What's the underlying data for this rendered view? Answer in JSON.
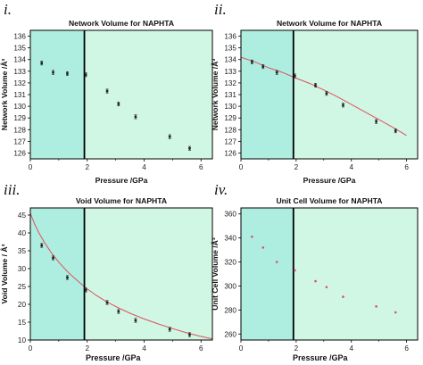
{
  "figure": {
    "colors": {
      "region_low": "#aeeee0",
      "region_high": "#cff7e3",
      "boundary_line": "#000000",
      "marker": "#222222",
      "fit_line": "#e05060"
    },
    "x_axis_label": "Pressure /GPa"
  },
  "chart_data": [
    {
      "type": "scatter",
      "panel_label": "i.",
      "title": "Network Volume for NAPHTA",
      "xlabel": "Pressure /GPa",
      "ylabel": "Network Volume /Å³",
      "xlim": [
        0,
        6.4
      ],
      "ylim": [
        125.5,
        136.5
      ],
      "xticks": [
        0,
        2,
        4,
        6
      ],
      "yticks": [
        126,
        127,
        128,
        129,
        130,
        131,
        132,
        133,
        134,
        135,
        136
      ],
      "boundary_x": 1.9,
      "fit_line": false,
      "marker_style": "error-bar",
      "series": [
        {
          "x": [
            0.4,
            0.8,
            1.3,
            1.95,
            2.7,
            3.1,
            3.7,
            4.9,
            5.6
          ],
          "y": [
            133.7,
            132.9,
            132.8,
            132.7,
            131.3,
            130.2,
            129.1,
            127.4,
            126.4
          ]
        }
      ]
    },
    {
      "type": "scatter",
      "panel_label": "ii.",
      "title": "Network Volume for NAPHTA",
      "xlabel": "Pressure /GPa",
      "ylabel": "Network Volume /Å³",
      "xlim": [
        0,
        6.4
      ],
      "ylim": [
        125.5,
        136.5
      ],
      "xticks": [
        0,
        2,
        4,
        6
      ],
      "yticks": [
        126,
        127,
        128,
        129,
        130,
        131,
        132,
        133,
        134,
        135,
        136
      ],
      "boundary_x": 1.9,
      "fit_line": true,
      "marker_style": "error-bar",
      "series": [
        {
          "x": [
            0.4,
            0.8,
            1.3,
            1.95,
            2.7,
            3.1,
            3.7,
            4.9,
            5.6
          ],
          "y": [
            133.8,
            133.4,
            132.9,
            132.6,
            131.8,
            131.1,
            130.1,
            128.7,
            127.9
          ]
        }
      ],
      "fit": {
        "x": [
          0,
          0.5,
          1.0,
          1.5,
          1.95,
          2.5,
          3.0,
          3.5,
          4.0,
          4.5,
          5.0,
          5.5,
          6.0
        ],
        "y": [
          134.2,
          133.8,
          133.3,
          132.9,
          132.45,
          131.95,
          131.4,
          130.8,
          130.15,
          129.5,
          128.85,
          128.2,
          127.5
        ]
      }
    },
    {
      "type": "scatter",
      "panel_label": "iii.",
      "title": "Void Volume for NAPHTA",
      "xlabel": "Pressure /GPa",
      "ylabel": "Void Volume / Å³",
      "xlim": [
        0,
        6.4
      ],
      "ylim": [
        10,
        47
      ],
      "xticks": [
        0,
        2,
        4,
        6
      ],
      "yticks": [
        10,
        15,
        20,
        25,
        30,
        35,
        40,
        45
      ],
      "boundary_x": 1.9,
      "fit_line": true,
      "marker_style": "error-bar",
      "series": [
        {
          "x": [
            0.4,
            0.8,
            1.3,
            1.95,
            2.7,
            3.1,
            3.7,
            4.9,
            5.6
          ],
          "y": [
            36.5,
            33.0,
            27.5,
            24.0,
            20.5,
            18.0,
            15.5,
            13.0,
            11.5
          ]
        }
      ],
      "fit": {
        "x": [
          0,
          0.15,
          0.3,
          0.5,
          0.75,
          1.0,
          1.3,
          1.6,
          1.95,
          2.3,
          2.7,
          3.1,
          3.5,
          4.0,
          4.5,
          5.0,
          5.5,
          6.0,
          6.4
        ],
        "y": [
          45.5,
          42.5,
          40.0,
          37.3,
          34.3,
          31.8,
          29.2,
          27.0,
          24.6,
          22.6,
          20.6,
          19.0,
          17.5,
          15.9,
          14.5,
          13.2,
          12.0,
          11.0,
          10.3
        ]
      }
    },
    {
      "type": "scatter",
      "panel_label": "iv.",
      "title": "Unit Cell Volume for NAPHTA",
      "xlabel": "Pressure /GPa",
      "ylabel": "Unit Cell Volume /Å³",
      "xlim": [
        0,
        6.4
      ],
      "ylim": [
        255,
        365
      ],
      "xticks": [
        0,
        2,
        4,
        6
      ],
      "yticks": [
        260,
        280,
        300,
        320,
        340,
        360
      ],
      "boundary_x": 1.9,
      "fit_line": false,
      "marker_style": "dot",
      "series": [
        {
          "x": [
            0.4,
            0.8,
            1.3,
            1.95,
            2.7,
            3.1,
            3.7,
            4.9,
            5.6
          ],
          "y": [
            341,
            332,
            320,
            313,
            304,
            299,
            291,
            283,
            278
          ]
        }
      ]
    }
  ]
}
